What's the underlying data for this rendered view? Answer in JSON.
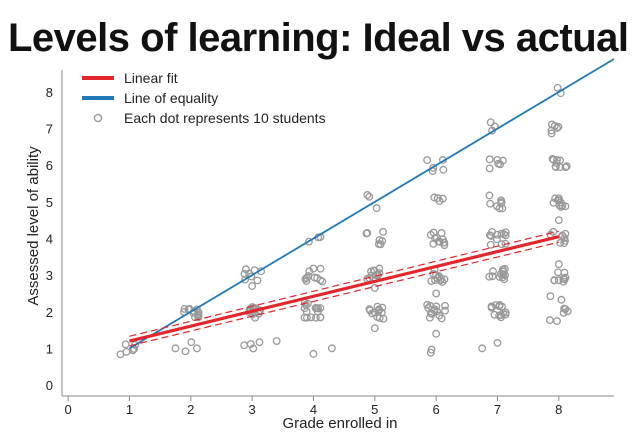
{
  "chart_data": {
    "type": "scatter",
    "title": "Levels of learning: Ideal vs actual",
    "xlabel": "Grade enrolled in",
    "ylabel": "Assessed level of ability",
    "xlim": [
      -0.1,
      8.9
    ],
    "ylim": [
      -0.3,
      8.6
    ],
    "xticks": [
      0,
      1,
      2,
      3,
      4,
      5,
      6,
      7,
      8
    ],
    "yticks": [
      0,
      1,
      2,
      3,
      4,
      5,
      6,
      7,
      8
    ],
    "grid": false,
    "legend": "top-left",
    "legend_entries": [
      {
        "label": "Linear fit",
        "kind": "line",
        "color": "#e2262b"
      },
      {
        "label": "Line of equality",
        "kind": "line",
        "color": "#1f7ab8"
      },
      {
        "label": "Each dot represents 10 students",
        "kind": "marker",
        "color": "#999999"
      }
    ],
    "series": [
      {
        "name": "Each dot represents 10 students",
        "kind": "points",
        "color": "#999999",
        "points": [
          [
            1.0,
            1.0,
            7
          ],
          [
            1.75,
            1.0,
            1
          ],
          [
            1.95,
            1.0,
            2
          ],
          [
            2.1,
            1.0,
            1
          ],
          [
            2.0,
            2.0,
            12
          ],
          [
            3.0,
            1.0,
            4
          ],
          [
            3.4,
            1.2,
            1
          ],
          [
            3.0,
            2.0,
            14
          ],
          [
            3.0,
            3.0,
            8
          ],
          [
            3.0,
            2.7,
            1
          ],
          [
            4.0,
            0.85,
            1
          ],
          [
            4.3,
            1.0,
            1
          ],
          [
            4.0,
            2.0,
            14
          ],
          [
            4.0,
            2.4,
            2
          ],
          [
            4.0,
            3.0,
            11
          ],
          [
            4.0,
            4.0,
            3
          ],
          [
            5.0,
            1.55,
            1
          ],
          [
            5.0,
            2.0,
            12
          ],
          [
            5.0,
            3.0,
            11
          ],
          [
            5.0,
            4.0,
            7
          ],
          [
            5.0,
            5.0,
            3
          ],
          [
            5.0,
            2.65,
            1
          ],
          [
            6.0,
            0.95,
            2
          ],
          [
            6.0,
            1.4,
            1
          ],
          [
            6.0,
            2.0,
            14
          ],
          [
            6.0,
            2.5,
            1
          ],
          [
            6.0,
            3.0,
            12
          ],
          [
            6.0,
            4.0,
            12
          ],
          [
            6.0,
            5.0,
            4
          ],
          [
            6.0,
            6.0,
            5
          ],
          [
            6.75,
            1.0,
            1
          ],
          [
            7.0,
            1.15,
            1
          ],
          [
            7.0,
            2.0,
            13
          ],
          [
            7.0,
            3.0,
            12
          ],
          [
            7.0,
            4.0,
            12
          ],
          [
            7.0,
            5.0,
            8
          ],
          [
            7.0,
            6.0,
            6
          ],
          [
            7.0,
            7.0,
            3
          ],
          [
            8.0,
            1.9,
            6
          ],
          [
            8.0,
            2.3,
            2
          ],
          [
            8.0,
            3.0,
            9
          ],
          [
            8.0,
            3.3,
            1
          ],
          [
            8.0,
            4.0,
            9
          ],
          [
            8.0,
            4.5,
            1
          ],
          [
            8.0,
            5.0,
            10
          ],
          [
            8.0,
            6.0,
            10
          ],
          [
            8.0,
            7.0,
            6
          ],
          [
            8.0,
            8.0,
            2
          ]
        ]
      },
      {
        "name": "Linear fit",
        "kind": "line",
        "color": "#e2262b",
        "x": [
          1,
          8
        ],
        "y": [
          1.2,
          4.05
        ],
        "ci_upper": [
          1.33,
          4.2
        ],
        "ci_lower": [
          1.07,
          3.9
        ]
      },
      {
        "name": "Line of equality",
        "kind": "line",
        "color": "#1f7ab8",
        "x": [
          1,
          8.9
        ],
        "y": [
          1,
          8.9
        ]
      }
    ]
  }
}
